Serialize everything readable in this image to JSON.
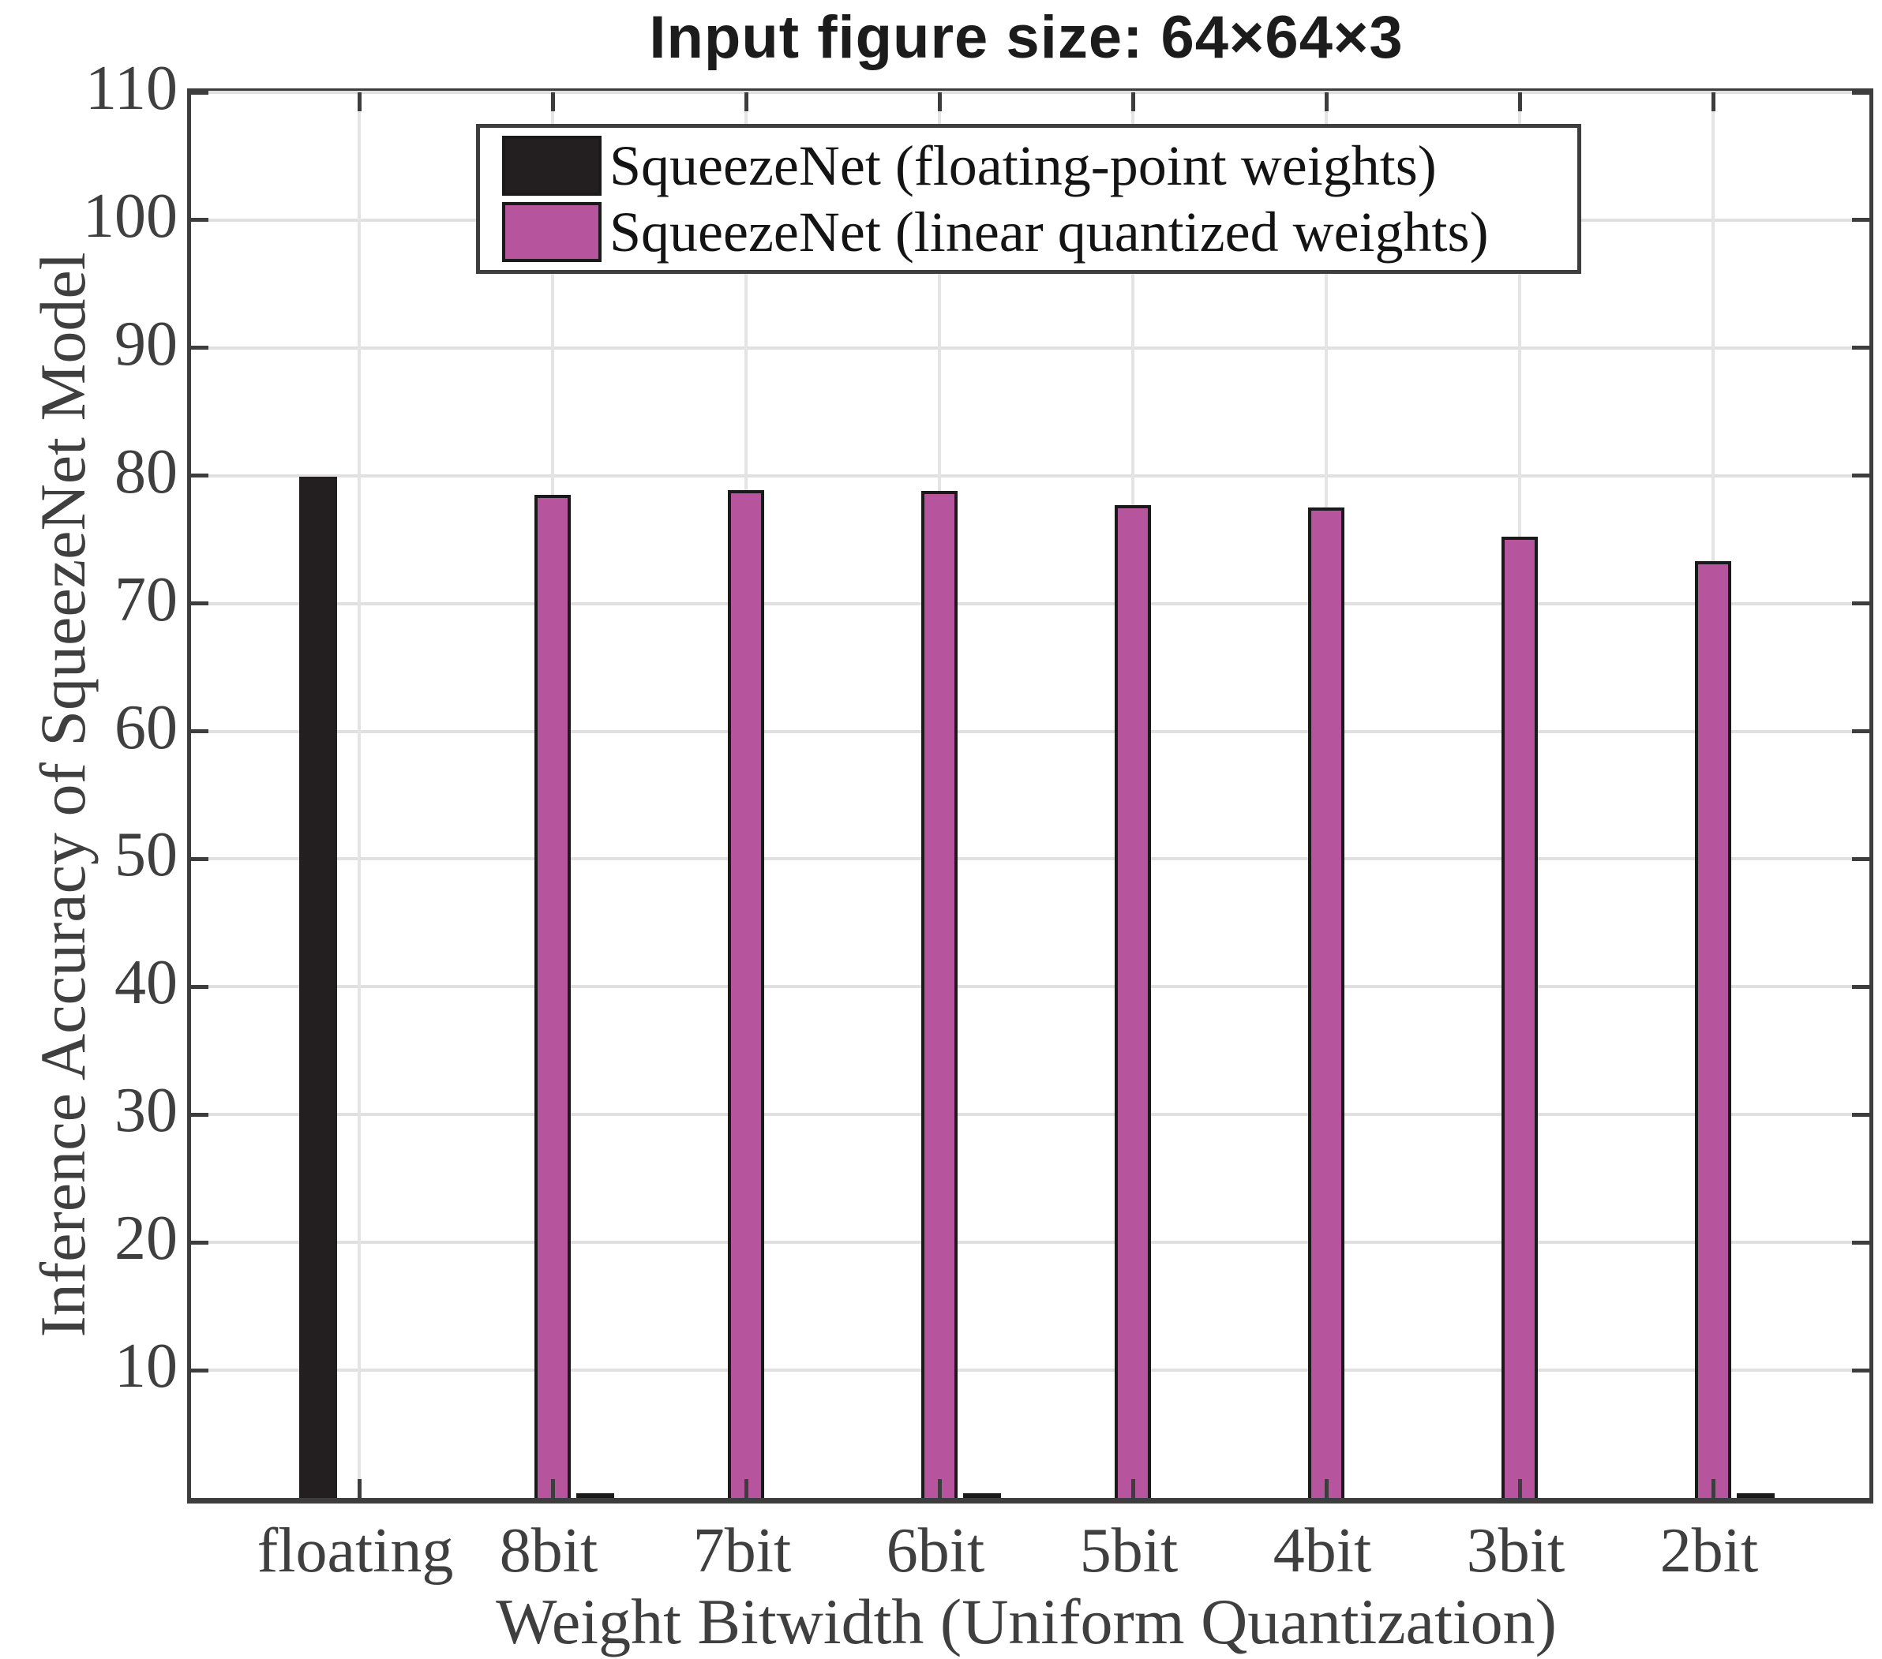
{
  "title": "Input figure size: 64×64×3",
  "axes": {
    "ylabel": "Inference Accuracy of SqueezeNet Model",
    "xlabel": "Weight Bitwidth (Uniform Quantization)",
    "y_ticks": [
      10,
      20,
      30,
      40,
      50,
      60,
      70,
      80,
      90,
      100,
      110
    ],
    "ylim": [
      0,
      110
    ]
  },
  "legend": {
    "items": [
      {
        "label": "SqueezeNet (floating-point weights)",
        "color": "#231f20"
      },
      {
        "label": "SqueezeNet (linear quantized weights)",
        "color": "#b6549e"
      }
    ]
  },
  "chart_data": {
    "type": "bar",
    "title": "Input figure size: 64×64×3",
    "xlabel": "Weight Bitwidth (Uniform Quantization)",
    "ylabel": "Inference Accuracy of SqueezeNet Model",
    "categories": [
      "floating",
      "8bit",
      "7bit",
      "6bit",
      "5bit",
      "4bit",
      "3bit",
      "2bit"
    ],
    "series": [
      {
        "name": "SqueezeNet (floating-point weights)",
        "color": "#231f20",
        "values": [
          79.9,
          0,
          0,
          0,
          0,
          0,
          0,
          0
        ]
      },
      {
        "name": "SqueezeNet (linear quantized weights)",
        "color": "#b6549e",
        "values": [
          0,
          78.5,
          78.9,
          78.8,
          77.7,
          77.5,
          75.2,
          73.3
        ]
      }
    ],
    "ylim": [
      0,
      110
    ],
    "grid": true,
    "legend_position": "top-center",
    "zero_markers": [
      "8bit",
      "6bit",
      "2bit"
    ]
  },
  "colors": {
    "axis": "#3d3d3d",
    "grid_h": "#e0e0e0",
    "grid_v": "#e4e4e4",
    "tick_text": "#3f3f3f",
    "bar_edge": "#1a1a1a",
    "background": "#ffffff"
  }
}
